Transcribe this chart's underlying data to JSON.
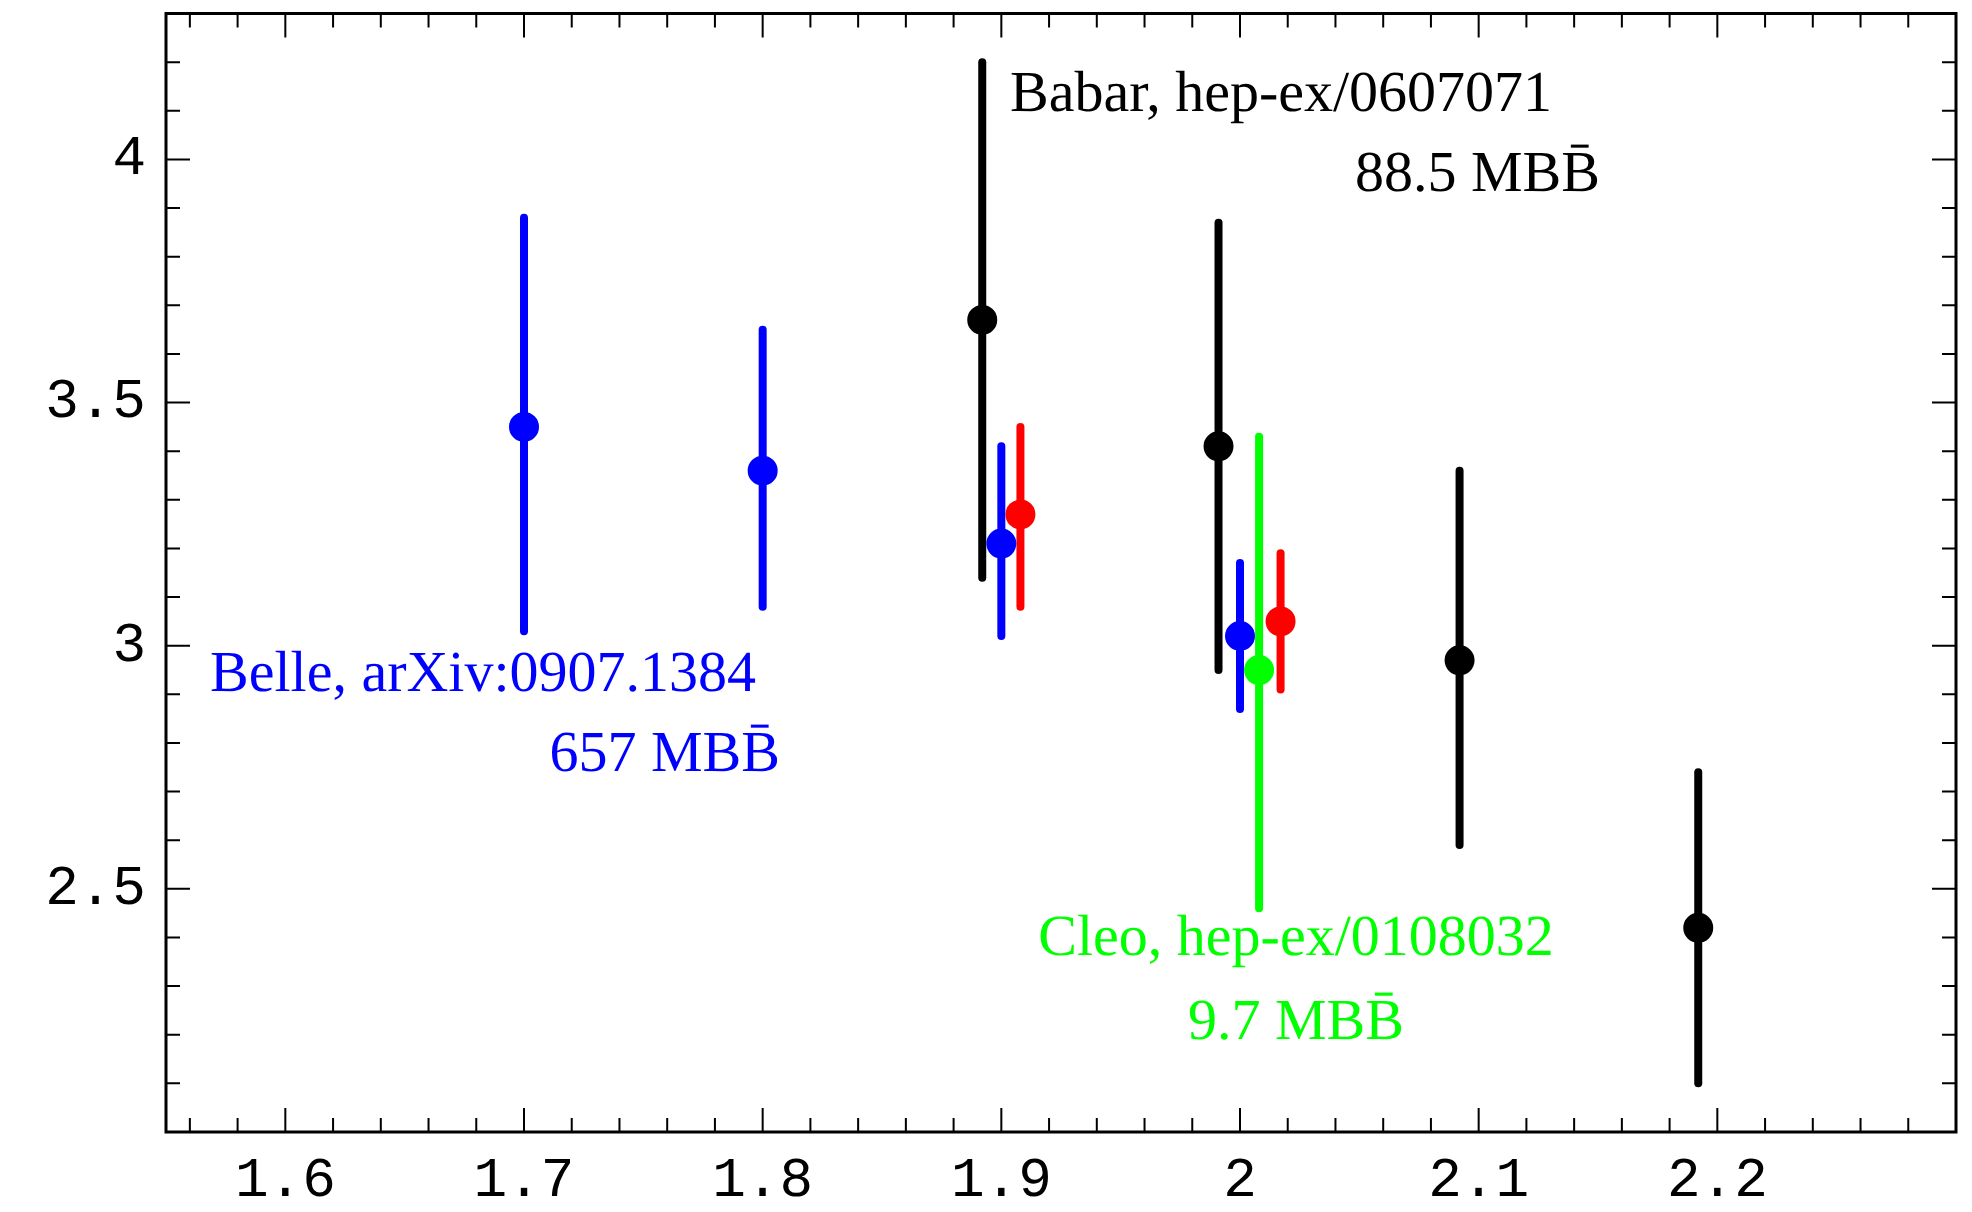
{
  "chart_data": {
    "type": "scatter",
    "marker": "circle",
    "grid": false,
    "xlim": [
      1.55,
      2.3
    ],
    "xticks": [
      {
        "value": 1.56,
        "label": null
      },
      {
        "value": 1.58,
        "label": null
      },
      1.6,
      {
        "value": 1.62,
        "label": null
      },
      {
        "value": 1.64,
        "label": null
      },
      {
        "value": 1.66,
        "label": null
      },
      {
        "value": 1.68,
        "label": null
      },
      1.7,
      {
        "value": 1.72,
        "label": null
      },
      {
        "value": 1.74,
        "label": null
      },
      {
        "value": 1.76,
        "label": null
      },
      {
        "value": 1.78,
        "label": null
      },
      1.8,
      {
        "value": 1.82,
        "label": null
      },
      {
        "value": 1.84,
        "label": null
      },
      {
        "value": 1.86,
        "label": null
      },
      {
        "value": 1.88,
        "label": null
      },
      1.9,
      {
        "value": 1.92,
        "label": null
      },
      {
        "value": 1.94,
        "label": null
      },
      {
        "value": 1.96,
        "label": null
      },
      {
        "value": 1.98,
        "label": null
      },
      2,
      {
        "value": 2.02,
        "label": null
      },
      {
        "value": 2.04,
        "label": null
      },
      {
        "value": 2.06,
        "label": null
      },
      {
        "value": 2.08,
        "label": null
      },
      2.1,
      {
        "value": 2.12,
        "label": null
      },
      {
        "value": 2.14,
        "label": null
      },
      {
        "value": 2.16,
        "label": null
      },
      {
        "value": 2.18,
        "label": null
      },
      2.2,
      {
        "value": 2.22,
        "label": null
      },
      {
        "value": 2.24,
        "label": null
      },
      {
        "value": 2.26,
        "label": null
      },
      {
        "value": 2.28,
        "label": null
      }
    ],
    "ylim": [
      2.0,
      4.3
    ],
    "yticks": [
      {
        "value": 2.1,
        "label": null
      },
      {
        "value": 2.2,
        "label": null
      },
      {
        "value": 2.3,
        "label": null
      },
      {
        "value": 2.4,
        "label": null
      },
      {
        "value": 2.5,
        "label": "2.5"
      },
      {
        "value": 2.6,
        "label": null
      },
      {
        "value": 2.7,
        "label": null
      },
      {
        "value": 2.8,
        "label": null
      },
      {
        "value": 2.9,
        "label": null
      },
      3,
      {
        "value": 3.1,
        "label": null
      },
      {
        "value": 3.2,
        "label": null
      },
      {
        "value": 3.3,
        "label": null
      },
      {
        "value": 3.4,
        "label": null
      },
      {
        "value": 3.5,
        "label": "3.5"
      },
      {
        "value": 3.6,
        "label": null
      },
      {
        "value": 3.7,
        "label": null
      },
      {
        "value": 3.8,
        "label": null
      },
      {
        "value": 3.9,
        "label": null
      },
      4,
      {
        "value": 4.1,
        "label": null
      },
      {
        "value": 4.2,
        "label": null
      }
    ],
    "series": [
      {
        "name": "Babar, hep-ex/0607071\n88.5 MBB̄",
        "color": "#000000",
        "x": [
          1.892,
          1.991,
          2.092,
          2.192
        ],
        "values": [
          3.67,
          3.41,
          2.97,
          2.42
        ],
        "errors": [
          [
            3.14,
            4.2
          ],
          [
            2.95,
            3.87
          ],
          [
            2.59,
            3.36
          ],
          [
            2.1,
            2.74
          ]
        ]
      },
      {
        "name": "Belle, arXiv:0907.1384\n657 MBB̄",
        "color": "#0000ff",
        "x": [
          1.7,
          1.8,
          1.9,
          2.0
        ],
        "values": [
          3.45,
          3.36,
          3.21,
          3.02
        ],
        "errors": [
          [
            3.03,
            3.88
          ],
          [
            3.08,
            3.65
          ],
          [
            3.02,
            3.41
          ],
          [
            2.87,
            3.17
          ]
        ]
      },
      {
        "name": "Cleo, hep-ex/0108032\n9.7 MBB̄",
        "color": "#00ff00",
        "x": [
          2.008
        ],
        "values": [
          2.95
        ],
        "errors": [
          [
            2.46,
            3.43
          ]
        ]
      },
      {
        "color": "#ff0000",
        "x": [
          1.908,
          2.017
        ],
        "values": [
          3.27,
          3.05
        ],
        "errors": [
          [
            3.08,
            3.45
          ],
          [
            2.91,
            3.19
          ]
        ]
      }
    ]
  }
}
